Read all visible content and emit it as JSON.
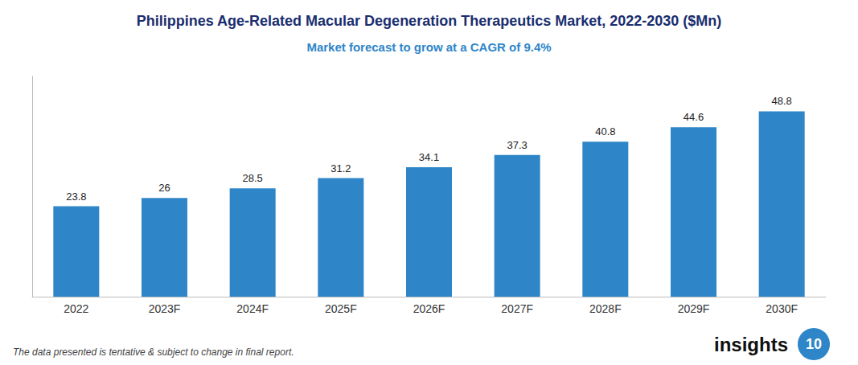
{
  "chart_data": {
    "type": "bar",
    "title": "Philippines Age-Related Macular Degeneration Therapeutics Market, 2022-2030 ($Mn)",
    "subtitle": "Market forecast to grow at a CAGR of 9.4%",
    "categories": [
      "2022",
      "2023F",
      "2024F",
      "2025F",
      "2026F",
      "2027F",
      "2028F",
      "2029F",
      "2030F"
    ],
    "values": [
      23.8,
      26.0,
      28.5,
      31.2,
      34.1,
      37.3,
      40.8,
      44.6,
      48.8
    ],
    "color": "#2e86c8",
    "ylim": [
      0,
      58
    ],
    "grid": false,
    "data_labels": true,
    "tick_labels": "x",
    "annotations": [
      "The data presented is tentative & subject to change in final report.",
      "insights",
      "10"
    ]
  }
}
